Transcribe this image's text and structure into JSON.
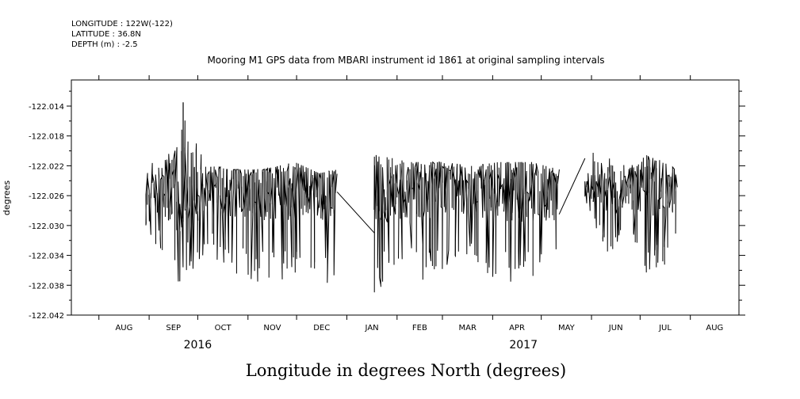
{
  "header": {
    "longitude": "LONGITUDE : 122W(-122)",
    "latitude": "LATITUDE : 36.8N",
    "depth": "DEPTH (m) : -2.5"
  },
  "chart_data": {
    "type": "line",
    "title": "Mooring M1 GPS data from MBARI instrument id 1861 at original sampling intervals",
    "xlabel": "Longitude in degrees North (degrees)",
    "ylabel": "degrees",
    "ylim": [
      -122.042,
      -122.0105
    ],
    "yticks": [
      -122.014,
      -122.018,
      -122.022,
      -122.026,
      -122.03,
      -122.034,
      -122.038,
      -122.042
    ],
    "ytick_labels": [
      "-122.014",
      "-122.018",
      "-122.022",
      "-122.026",
      "-122.030",
      "-122.034",
      "-122.038",
      "-122.042"
    ],
    "xlim": [
      "2016-07-15",
      "2017-08-31"
    ],
    "months": [
      {
        "label": "AUG",
        "date": "2016-08-01"
      },
      {
        "label": "SEP",
        "date": "2016-09-01"
      },
      {
        "label": "OCT",
        "date": "2016-10-01"
      },
      {
        "label": "NOV",
        "date": "2016-11-01"
      },
      {
        "label": "DEC",
        "date": "2016-12-01"
      },
      {
        "label": "JAN",
        "date": "2017-01-01"
      },
      {
        "label": "FEB",
        "date": "2017-02-01"
      },
      {
        "label": "MAR",
        "date": "2017-03-01"
      },
      {
        "label": "APR",
        "date": "2017-04-01"
      },
      {
        "label": "MAY",
        "date": "2017-05-01"
      },
      {
        "label": "JUN",
        "date": "2017-06-01"
      },
      {
        "label": "JUL",
        "date": "2017-07-01"
      },
      {
        "label": "AUG",
        "date": "2017-08-01"
      }
    ],
    "years": [
      {
        "label": "2016",
        "date": "2016-10-01"
      },
      {
        "label": "2017",
        "date": "2017-04-20"
      }
    ],
    "series": [
      {
        "segments": [
          {
            "start": "2016-08-30",
            "end": "2016-12-26",
            "envelope": [
              {
                "date": "2016-08-30",
                "min": -122.031,
                "max": -122.0215
              },
              {
                "date": "2016-09-10",
                "min": -122.034,
                "max": -122.0215
              },
              {
                "date": "2016-09-20",
                "min": -122.038,
                "max": -122.0135
              },
              {
                "date": "2016-10-05",
                "min": -122.034,
                "max": -122.0215
              },
              {
                "date": "2016-10-20",
                "min": -122.036,
                "max": -122.0225
              },
              {
                "date": "2016-11-10",
                "min": -122.038,
                "max": -122.0225
              },
              {
                "date": "2016-11-30",
                "min": -122.038,
                "max": -122.0215
              },
              {
                "date": "2016-12-15",
                "min": -122.039,
                "max": -122.023
              },
              {
                "date": "2016-12-26",
                "min": -122.0385,
                "max": -122.0225
              }
            ]
          },
          {
            "start": "2016-12-26",
            "end": "2017-01-18",
            "line": [
              {
                "date": "2016-12-26",
                "value": -122.0255
              },
              {
                "date": "2017-01-18",
                "value": -122.031
              }
            ]
          },
          {
            "start": "2017-01-18",
            "end": "2017-05-12",
            "envelope": [
              {
                "date": "2017-01-18",
                "min": -122.039,
                "max": -122.0205
              },
              {
                "date": "2017-02-10",
                "min": -122.038,
                "max": -122.0215
              },
              {
                "date": "2017-03-01",
                "min": -122.036,
                "max": -122.0215
              },
              {
                "date": "2017-03-20",
                "min": -122.034,
                "max": -122.022
              },
              {
                "date": "2017-04-05",
                "min": -122.039,
                "max": -122.0215
              },
              {
                "date": "2017-04-25",
                "min": -122.037,
                "max": -122.0215
              },
              {
                "date": "2017-05-12",
                "min": -122.038,
                "max": -122.0225
              }
            ]
          },
          {
            "start": "2017-05-12",
            "end": "2017-05-28",
            "line": [
              {
                "date": "2017-05-12",
                "value": -122.0285
              },
              {
                "date": "2017-05-28",
                "value": -122.021
              }
            ]
          },
          {
            "start": "2017-05-28",
            "end": "2017-07-24",
            "envelope": [
              {
                "date": "2017-05-28",
                "min": -122.0265,
                "max": -122.019
              },
              {
                "date": "2017-06-10",
                "min": -122.034,
                "max": -122.0205
              },
              {
                "date": "2017-06-25",
                "min": -122.031,
                "max": -122.0215
              },
              {
                "date": "2017-07-05",
                "min": -122.037,
                "max": -122.0195
              },
              {
                "date": "2017-07-15",
                "min": -122.036,
                "max": -122.0215
              },
              {
                "date": "2017-07-24",
                "min": -122.0335,
                "max": -122.0225
              }
            ]
          }
        ]
      }
    ],
    "grid": false
  }
}
